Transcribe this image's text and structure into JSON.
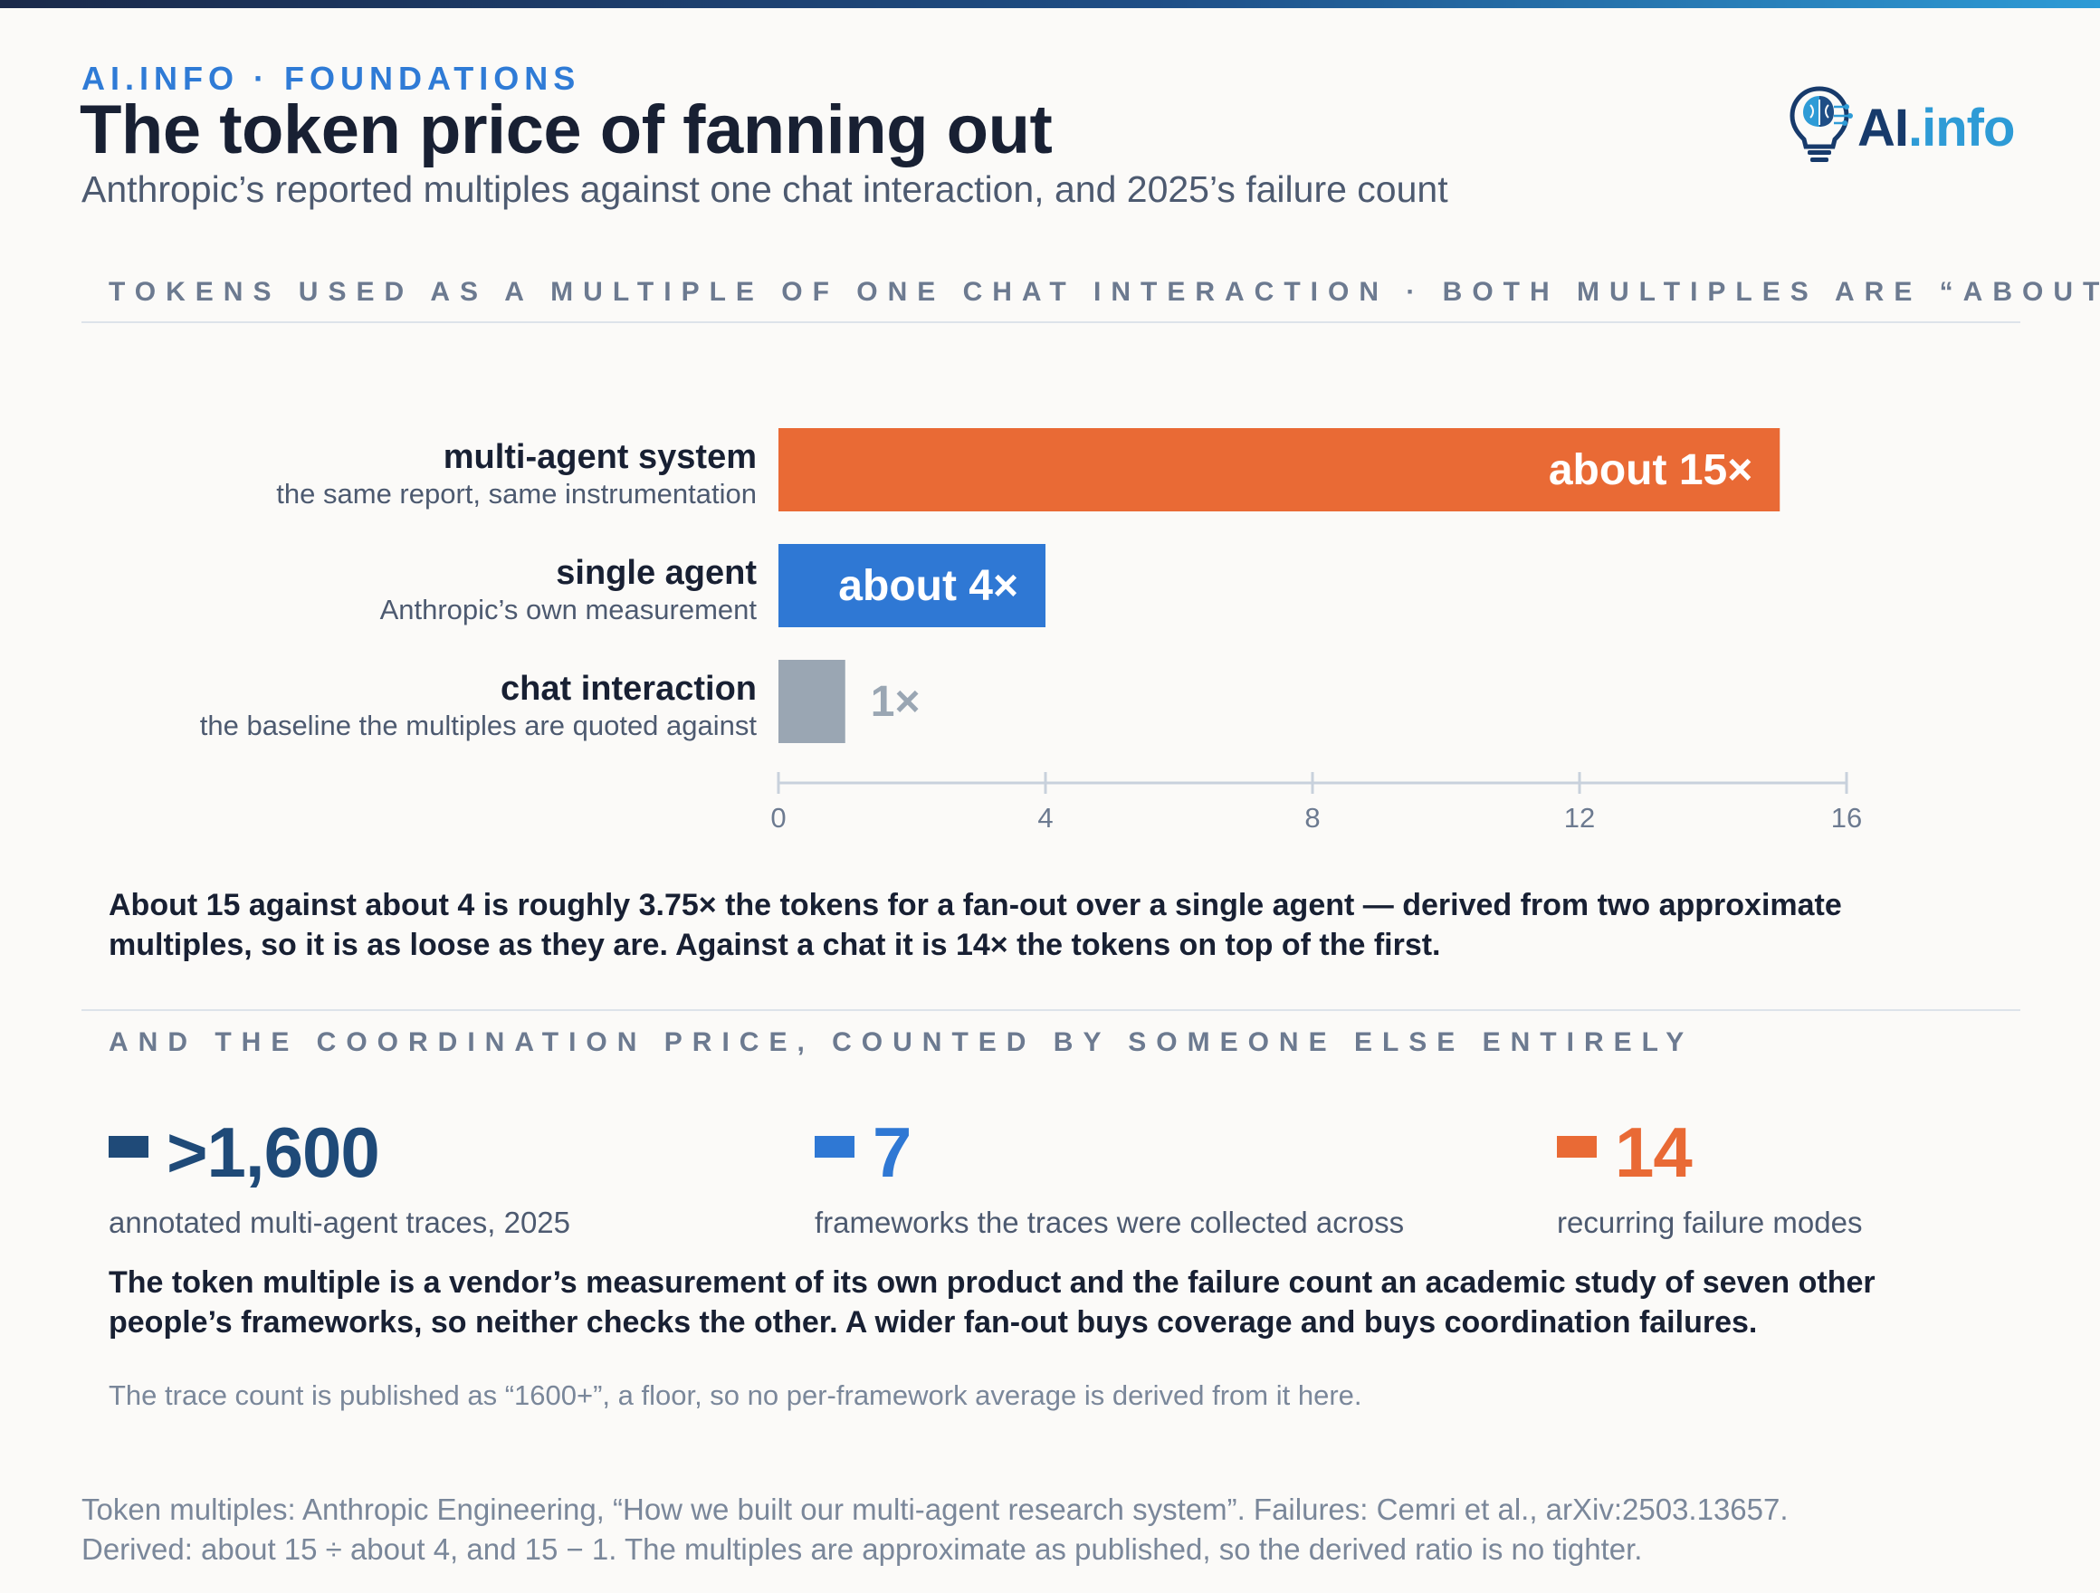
{
  "header": {
    "kicker": "AI.INFO · FOUNDATIONS",
    "title": "The token price of fanning out",
    "subtitle": "Anthropic’s reported multiples against one chat interaction, and 2025’s failure count",
    "logo_text_main": "AI",
    "logo_text_dot": ".info"
  },
  "sections": {
    "tokens_title": "TOKENS USED AS A MULTIPLE OF ONE CHAT INTERACTION · BOTH MULTIPLES ARE “ABOUT”",
    "coordination_title": "AND THE COORDINATION PRICE, COUNTED BY SOMEONE ELSE ENTIRELY"
  },
  "chart_data": {
    "type": "bar",
    "orientation": "horizontal",
    "categories": [
      "multi-agent system",
      "single agent",
      "chat interaction"
    ],
    "category_notes": [
      "the same report, same instrumentation",
      "Anthropic’s own measurement",
      "the baseline the multiples are quoted against"
    ],
    "values": [
      15,
      4,
      1
    ],
    "data_labels": [
      "about 15×",
      "about 4×",
      "1×"
    ],
    "colors": [
      "#e96a35",
      "#2f78d4",
      "#9aa6b3"
    ],
    "xlim": [
      0,
      16
    ],
    "xticks": [
      "0",
      "4",
      "8",
      "12",
      "16"
    ],
    "grid": false
  },
  "notes": {
    "ratio_note": "About 15 against about 4 is roughly 3.75× the tokens for a fan-out over a single agent — derived from two approximate multiples, so it is as loose as they are. Against a chat it is 14× the tokens on top of the first.",
    "comparison_note": "The token multiple is a vendor’s measurement of its own product and the failure count an academic study of seven other people’s frameworks, so neither checks the other. A wider fan-out buys coverage and buys coordination failures.",
    "floor_note": "The trace count is published as “1600+”, a floor, so no per-framework average is derived from it here."
  },
  "stats": [
    {
      "value": ">1,600",
      "label": "annotated multi-agent traces, 2025",
      "color": "#1f4a78"
    },
    {
      "value": "7",
      "label": "frameworks the traces were collected across",
      "color": "#2f78d4"
    },
    {
      "value": "14",
      "label": "recurring failure modes",
      "color": "#e96a35"
    }
  ],
  "source": {
    "line1": "Token multiples: Anthropic Engineering, “How we built our multi-agent research system”. Failures: Cemri et al., arXiv:2503.13657.",
    "line2": "Derived: about 15 ÷ about 4, and 15 − 1. The multiples are approximate as published, so the derived ratio is no tighter."
  }
}
